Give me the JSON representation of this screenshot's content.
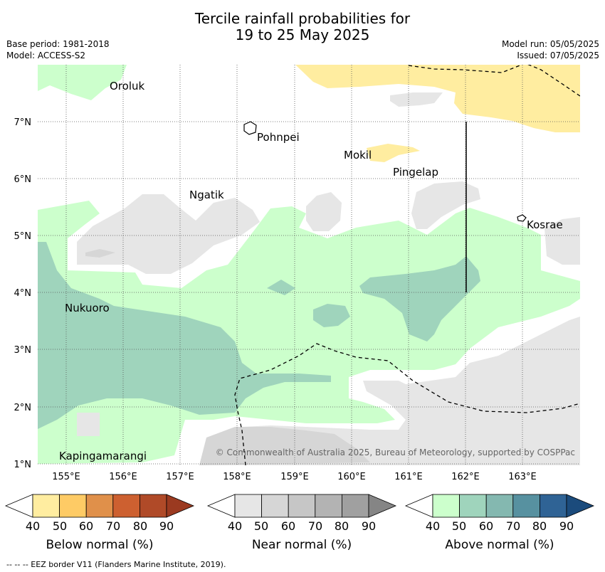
{
  "header": {
    "title_line1": "Tercile rainfall probabilities for",
    "title_line2": "19 to 25 May 2025",
    "base_period": "Base period: 1981-2018",
    "model": "Model: ACCESS-S2",
    "model_run": "Model run: 05/05/2025",
    "issued": "Issued: 07/05/2025"
  },
  "map": {
    "lat_labels": [
      "7°N",
      "6°N",
      "5°N",
      "4°N",
      "3°N",
      "2°N",
      "1°N"
    ],
    "lon_labels": [
      "155°E",
      "156°E",
      "157°E",
      "158°E",
      "159°E",
      "160°E",
      "161°E",
      "162°E",
      "163°E"
    ],
    "places": [
      "Oroluk",
      "Pohnpei",
      "Mokil",
      "Pingelap",
      "Ngatik",
      "Kosrae",
      "Nukuoro",
      "Kapingamarangi"
    ],
    "copyright": "© Commonwealth of Australia 2025, Bureau of Meteorology, supported by COSPPac"
  },
  "legends": [
    {
      "title": "Below normal (%)",
      "ticks": [
        "40",
        "50",
        "60",
        "70",
        "80",
        "90"
      ],
      "colors": [
        "#ffeda0",
        "#fecb65",
        "#e0904a",
        "#cd6030",
        "#b04a28",
        "#9b3a20"
      ]
    },
    {
      "title": "Near normal (%)",
      "ticks": [
        "40",
        "50",
        "60",
        "70",
        "80",
        "90"
      ],
      "colors": [
        "#e6e6e6",
        "#d6d6d6",
        "#c6c6c6",
        "#b3b3b3",
        "#a0a0a0",
        "#858585"
      ]
    },
    {
      "title": "Above normal (%)",
      "ticks": [
        "40",
        "50",
        "60",
        "70",
        "80",
        "90"
      ],
      "colors": [
        "#ccffcc",
        "#9fd4bc",
        "#84b8b0",
        "#5791a0",
        "#2f6395",
        "#1b4b7c"
      ]
    }
  ],
  "footnote": "-- -- -- EEZ border V11 (Flanders Marine Institute, 2019)."
}
